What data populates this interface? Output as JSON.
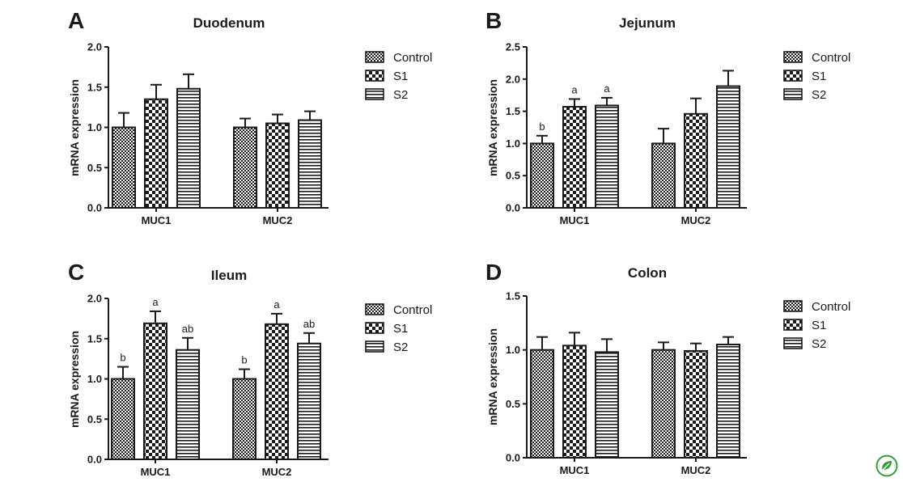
{
  "legend_labels": [
    "Control",
    "S1",
    "S2"
  ],
  "chart_data": [
    {
      "panel_letter": "A",
      "type": "bar",
      "title": "Duodenum",
      "xlabel": "",
      "ylabel": "mRNA expression",
      "ylim": [
        0,
        2.0
      ],
      "yticks": [
        "0.0",
        "0.5",
        "1.0",
        "1.5",
        "2.0"
      ],
      "yticks_values": [
        0,
        0.5,
        1.0,
        1.5,
        2.0
      ],
      "categories": [
        "MUC1",
        "MUC2"
      ],
      "legend_position": "top-right",
      "grid": false,
      "series": [
        {
          "name": "Control",
          "pattern": "dense",
          "values": [
            1.0,
            1.0
          ],
          "errors": [
            0.18,
            0.11
          ],
          "labels": [
            "",
            ""
          ]
        },
        {
          "name": "S1",
          "pattern": "checker",
          "values": [
            1.35,
            1.05
          ],
          "errors": [
            0.18,
            0.11
          ],
          "labels": [
            "",
            ""
          ]
        },
        {
          "name": "S2",
          "pattern": "hstripe",
          "values": [
            1.48,
            1.09
          ],
          "errors": [
            0.18,
            0.11
          ],
          "labels": [
            "",
            ""
          ]
        }
      ]
    },
    {
      "panel_letter": "B",
      "type": "bar",
      "title": "Jejunum",
      "xlabel": "",
      "ylabel": "mRNA expression",
      "ylim": [
        0,
        2.5
      ],
      "yticks": [
        "0.0",
        "0.5",
        "1.0",
        "1.5",
        "2.0",
        "2.5"
      ],
      "yticks_values": [
        0,
        0.5,
        1.0,
        1.5,
        2.0,
        2.5
      ],
      "categories": [
        "MUC1",
        "MUC2"
      ],
      "legend_position": "top-right",
      "grid": false,
      "series": [
        {
          "name": "Control",
          "pattern": "dense",
          "values": [
            1.0,
            1.0
          ],
          "errors": [
            0.12,
            0.23
          ],
          "labels": [
            "b",
            ""
          ]
        },
        {
          "name": "S1",
          "pattern": "checker",
          "values": [
            1.57,
            1.46
          ],
          "errors": [
            0.12,
            0.24
          ],
          "labels": [
            "a",
            ""
          ]
        },
        {
          "name": "S2",
          "pattern": "hstripe",
          "values": [
            1.59,
            1.89
          ],
          "errors": [
            0.12,
            0.24
          ],
          "labels": [
            "a",
            ""
          ]
        }
      ]
    },
    {
      "panel_letter": "C",
      "type": "bar",
      "title": "Ileum",
      "xlabel": "",
      "ylabel": "mRNA expression",
      "ylim": [
        0,
        2.0
      ],
      "yticks": [
        "0.0",
        "0.5",
        "1.0",
        "1.5",
        "2.0"
      ],
      "yticks_values": [
        0,
        0.5,
        1.0,
        1.5,
        2.0
      ],
      "categories": [
        "MUC1",
        "MUC2"
      ],
      "legend_position": "top-right",
      "grid": false,
      "series": [
        {
          "name": "Control",
          "pattern": "dense",
          "values": [
            1.0,
            1.0
          ],
          "errors": [
            0.15,
            0.12
          ],
          "labels": [
            "b",
            "b"
          ]
        },
        {
          "name": "S1",
          "pattern": "checker",
          "values": [
            1.69,
            1.68
          ],
          "errors": [
            0.15,
            0.13
          ],
          "labels": [
            "a",
            "a"
          ]
        },
        {
          "name": "S2",
          "pattern": "hstripe",
          "values": [
            1.36,
            1.44
          ],
          "errors": [
            0.15,
            0.13
          ],
          "labels": [
            "ab",
            "ab"
          ]
        }
      ]
    },
    {
      "panel_letter": "D",
      "type": "bar",
      "title": "Colon",
      "xlabel": "",
      "ylabel": "mRNA expression",
      "ylim": [
        0,
        1.5
      ],
      "yticks": [
        "0.0",
        "0.5",
        "1.0",
        "1.5"
      ],
      "yticks_values": [
        0,
        0.5,
        1.0,
        1.5
      ],
      "categories": [
        "MUC1",
        "MUC2"
      ],
      "legend_position": "top-right",
      "grid": false,
      "series": [
        {
          "name": "Control",
          "pattern": "dense",
          "values": [
            1.0,
            1.0
          ],
          "errors": [
            0.12,
            0.07
          ],
          "labels": [
            "",
            ""
          ]
        },
        {
          "name": "S1",
          "pattern": "checker",
          "values": [
            1.04,
            0.99
          ],
          "errors": [
            0.12,
            0.07
          ],
          "labels": [
            "",
            ""
          ]
        },
        {
          "name": "S2",
          "pattern": "hstripe",
          "values": [
            0.98,
            1.05
          ],
          "errors": [
            0.12,
            0.07
          ],
          "labels": [
            "",
            ""
          ]
        }
      ]
    }
  ],
  "colors": {
    "ink": "#1a1a1a",
    "background": "#ffffff",
    "icon_green": "#3a9a3a"
  },
  "icons": {
    "corner": "leaf-badge-icon"
  }
}
